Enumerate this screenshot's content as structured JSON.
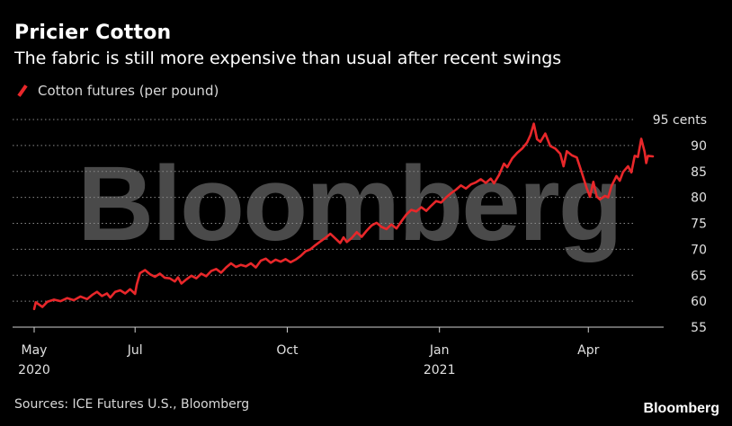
{
  "header": {
    "title": "Pricier Cotton",
    "subtitle": "The fabric is still more expensive than usual after recent swings"
  },
  "footer": {
    "source": "Sources: ICE Futures U.S., Bloomberg",
    "brand": "Bloomberg"
  },
  "watermark": "Bloomberg",
  "colors": {
    "background": "#000000",
    "series": "#e8272a",
    "grid": "#8a8a8a",
    "text": "#ffffff"
  },
  "chart_data": {
    "type": "line",
    "title": "Pricier Cotton",
    "subtitle": "The fabric is still more expensive than usual after recent swings",
    "xlabel": "",
    "ylabel": "",
    "ylim": [
      55,
      95
    ],
    "xlim": [
      "2020-05-01",
      "2021-05-10"
    ],
    "grid": true,
    "legend_position": "top-left",
    "y_ticks": [
      {
        "value": 95,
        "label": "95 cents"
      },
      {
        "value": 90,
        "label": "90"
      },
      {
        "value": 85,
        "label": "85"
      },
      {
        "value": 80,
        "label": "80"
      },
      {
        "value": 75,
        "label": "75"
      },
      {
        "value": 70,
        "label": "70"
      },
      {
        "value": 65,
        "label": "65"
      },
      {
        "value": 60,
        "label": "60"
      },
      {
        "value": 55,
        "label": "55"
      }
    ],
    "x_ticks": [
      {
        "date": "2020-05-01",
        "label": "May",
        "sublabel": "2020"
      },
      {
        "date": "2020-07-01",
        "label": "Jul",
        "sublabel": ""
      },
      {
        "date": "2020-10-01",
        "label": "Oct",
        "sublabel": ""
      },
      {
        "date": "2021-01-01",
        "label": "Jan",
        "sublabel": "2021"
      },
      {
        "date": "2021-04-01",
        "label": "Apr",
        "sublabel": ""
      }
    ],
    "series": [
      {
        "name": "Cotton futures (per pound)",
        "color": "#e8272a",
        "points": [
          [
            "2020-05-01",
            58.5
          ],
          [
            "2020-05-02",
            59.8
          ],
          [
            "2020-05-06",
            58.9
          ],
          [
            "2020-05-09",
            59.9
          ],
          [
            "2020-05-13",
            60.3
          ],
          [
            "2020-05-17",
            60.0
          ],
          [
            "2020-05-21",
            60.6
          ],
          [
            "2020-05-25",
            60.2
          ],
          [
            "2020-05-29",
            60.9
          ],
          [
            "2020-06-02",
            60.4
          ],
          [
            "2020-06-05",
            61.2
          ],
          [
            "2020-06-08",
            61.8
          ],
          [
            "2020-06-11",
            61.0
          ],
          [
            "2020-06-14",
            61.5
          ],
          [
            "2020-06-16",
            60.7
          ],
          [
            "2020-06-19",
            61.8
          ],
          [
            "2020-06-22",
            62.1
          ],
          [
            "2020-06-25",
            61.5
          ],
          [
            "2020-06-28",
            62.3
          ],
          [
            "2020-07-01",
            61.4
          ],
          [
            "2020-07-02",
            63.2
          ],
          [
            "2020-07-04",
            65.4
          ],
          [
            "2020-07-07",
            66.0
          ],
          [
            "2020-07-10",
            65.2
          ],
          [
            "2020-07-13",
            64.7
          ],
          [
            "2020-07-16",
            65.3
          ],
          [
            "2020-07-19",
            64.5
          ],
          [
            "2020-07-22",
            64.4
          ],
          [
            "2020-07-25",
            63.8
          ],
          [
            "2020-07-27",
            64.6
          ],
          [
            "2020-07-29",
            63.4
          ],
          [
            "2020-08-01",
            64.2
          ],
          [
            "2020-08-04",
            64.9
          ],
          [
            "2020-08-07",
            64.4
          ],
          [
            "2020-08-10",
            65.3
          ],
          [
            "2020-08-13",
            64.8
          ],
          [
            "2020-08-16",
            65.8
          ],
          [
            "2020-08-19",
            66.2
          ],
          [
            "2020-08-22",
            65.5
          ],
          [
            "2020-08-25",
            66.5
          ],
          [
            "2020-08-28",
            67.3
          ],
          [
            "2020-08-31",
            66.6
          ],
          [
            "2020-09-03",
            67.0
          ],
          [
            "2020-09-06",
            66.7
          ],
          [
            "2020-09-09",
            67.3
          ],
          [
            "2020-09-12",
            66.5
          ],
          [
            "2020-09-15",
            67.8
          ],
          [
            "2020-09-18",
            68.2
          ],
          [
            "2020-09-21",
            67.4
          ],
          [
            "2020-09-24",
            68.0
          ],
          [
            "2020-09-27",
            67.6
          ],
          [
            "2020-09-30",
            68.1
          ],
          [
            "2020-10-03",
            67.5
          ],
          [
            "2020-10-06",
            68.0
          ],
          [
            "2020-10-09",
            68.7
          ],
          [
            "2020-10-12",
            69.6
          ],
          [
            "2020-10-15",
            70.0
          ],
          [
            "2020-10-18",
            70.8
          ],
          [
            "2020-10-21",
            71.5
          ],
          [
            "2020-10-24",
            72.2
          ],
          [
            "2020-10-27",
            73.0
          ],
          [
            "2020-10-30",
            72.1
          ],
          [
            "2020-11-02",
            71.2
          ],
          [
            "2020-11-04",
            72.3
          ],
          [
            "2020-11-06",
            71.4
          ],
          [
            "2020-11-09",
            72.2
          ],
          [
            "2020-11-12",
            73.3
          ],
          [
            "2020-11-15",
            72.4
          ],
          [
            "2020-11-18",
            73.6
          ],
          [
            "2020-11-21",
            74.6
          ],
          [
            "2020-11-24",
            75.1
          ],
          [
            "2020-11-27",
            74.3
          ],
          [
            "2020-11-30",
            73.9
          ],
          [
            "2020-12-03",
            74.8
          ],
          [
            "2020-12-06",
            74.0
          ],
          [
            "2020-12-09",
            75.4
          ],
          [
            "2020-12-12",
            76.7
          ],
          [
            "2020-12-15",
            77.6
          ],
          [
            "2020-12-18",
            77.3
          ],
          [
            "2020-12-21",
            78.1
          ],
          [
            "2020-12-24",
            77.4
          ],
          [
            "2020-12-27",
            78.4
          ],
          [
            "2020-12-30",
            79.3
          ],
          [
            "2021-01-02",
            79.0
          ],
          [
            "2021-01-05",
            80.0
          ],
          [
            "2021-01-08",
            80.8
          ],
          [
            "2021-01-11",
            81.5
          ],
          [
            "2021-01-14",
            82.3
          ],
          [
            "2021-01-17",
            81.7
          ],
          [
            "2021-01-20",
            82.5
          ],
          [
            "2021-01-23",
            82.9
          ],
          [
            "2021-01-26",
            83.5
          ],
          [
            "2021-01-29",
            82.8
          ],
          [
            "2021-02-01",
            83.6
          ],
          [
            "2021-02-03",
            82.7
          ],
          [
            "2021-02-06",
            84.3
          ],
          [
            "2021-02-09",
            86.5
          ],
          [
            "2021-02-11",
            85.8
          ],
          [
            "2021-02-14",
            87.5
          ],
          [
            "2021-02-17",
            88.6
          ],
          [
            "2021-02-20",
            89.4
          ],
          [
            "2021-02-23",
            90.6
          ],
          [
            "2021-02-25",
            92.0
          ],
          [
            "2021-02-27",
            94.2
          ],
          [
            "2021-03-01",
            91.2
          ],
          [
            "2021-03-03",
            90.7
          ],
          [
            "2021-03-06",
            92.3
          ],
          [
            "2021-03-09",
            89.9
          ],
          [
            "2021-03-12",
            89.4
          ],
          [
            "2021-03-15",
            88.4
          ],
          [
            "2021-03-17",
            86.0
          ],
          [
            "2021-03-19",
            88.9
          ],
          [
            "2021-03-22",
            88.1
          ],
          [
            "2021-03-25",
            87.7
          ],
          [
            "2021-03-28",
            84.8
          ],
          [
            "2021-03-31",
            81.8
          ],
          [
            "2021-04-02",
            80.1
          ],
          [
            "2021-04-04",
            83.0
          ],
          [
            "2021-04-06",
            80.2
          ],
          [
            "2021-04-08",
            79.6
          ],
          [
            "2021-04-11",
            80.3
          ],
          [
            "2021-04-13",
            80.0
          ],
          [
            "2021-04-15",
            82.2
          ],
          [
            "2021-04-18",
            84.1
          ],
          [
            "2021-04-20",
            83.2
          ],
          [
            "2021-04-22",
            84.9
          ],
          [
            "2021-04-25",
            86.0
          ],
          [
            "2021-04-27",
            84.8
          ],
          [
            "2021-04-29",
            88.0
          ],
          [
            "2021-05-01",
            87.8
          ],
          [
            "2021-05-03",
            91.3
          ],
          [
            "2021-05-05",
            88.8
          ],
          [
            "2021-05-06",
            86.6
          ],
          [
            "2021-05-07",
            88.0
          ],
          [
            "2021-05-10",
            87.9
          ]
        ]
      }
    ]
  }
}
